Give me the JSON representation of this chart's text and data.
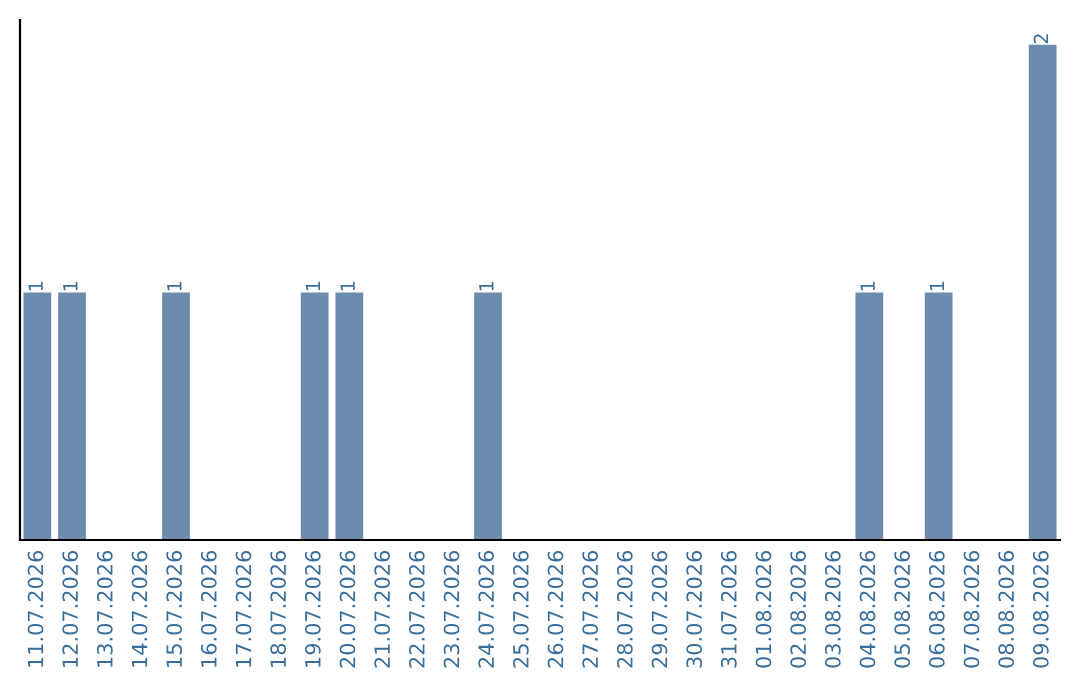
{
  "chart_data": {
    "type": "bar",
    "categories": [
      "11.07.2026",
      "12.07.2026",
      "13.07.2026",
      "14.07.2026",
      "15.07.2026",
      "16.07.2026",
      "17.07.2026",
      "18.07.2026",
      "19.07.2026",
      "20.07.2026",
      "21.07.2026",
      "22.07.2026",
      "23.07.2026",
      "24.07.2026",
      "25.07.2026",
      "26.07.2026",
      "27.07.2026",
      "28.07.2026",
      "29.07.2026",
      "30.07.2026",
      "31.07.2026",
      "01.08.2026",
      "02.08.2026",
      "03.08.2026",
      "04.08.2026",
      "05.08.2026",
      "06.08.2026",
      "07.08.2026",
      "08.08.2026",
      "09.08.2026"
    ],
    "values": [
      1,
      1,
      0,
      0,
      1,
      0,
      0,
      0,
      1,
      1,
      0,
      0,
      0,
      1,
      0,
      0,
      0,
      0,
      0,
      0,
      0,
      0,
      0,
      0,
      1,
      0,
      1,
      0,
      0,
      2
    ],
    "value_labels": [
      "1",
      "1",
      null,
      null,
      "1",
      null,
      null,
      null,
      "1",
      "1",
      null,
      null,
      null,
      "1",
      null,
      null,
      null,
      null,
      null,
      null,
      null,
      null,
      null,
      null,
      "1",
      null,
      "1",
      null,
      null,
      "2"
    ],
    "color": "#6b8cac",
    "tick_labels": "x",
    "grid": false,
    "legend": false
  }
}
